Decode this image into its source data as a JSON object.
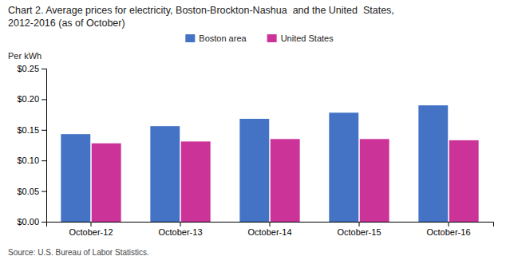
{
  "chart_data": {
    "type": "bar",
    "title": "Chart 2. Average prices for electricity, Boston-Brockton-Nashua  and the United  States,\n2012-2016 (as of October)",
    "ylabel": "Per kWh",
    "source": "Source: U.S. Bureau of Labor Statistics.",
    "categories": [
      "October-12",
      "October-13",
      "October-14",
      "October-15",
      "October-16"
    ],
    "series": [
      {
        "name": "Boston area",
        "color": "#4472C4",
        "values": [
          0.143,
          0.156,
          0.168,
          0.178,
          0.19
        ]
      },
      {
        "name": "United States",
        "color": "#CC3399",
        "values": [
          0.128,
          0.131,
          0.135,
          0.135,
          0.133
        ]
      }
    ],
    "ylim": [
      0,
      0.25
    ],
    "yticks": [
      {
        "value": 0.0,
        "label": "$0.00"
      },
      {
        "value": 0.05,
        "label": "$0.05"
      },
      {
        "value": 0.1,
        "label": "$0.10"
      },
      {
        "value": 0.15,
        "label": "$0.15"
      },
      {
        "value": 0.2,
        "label": "$0.20"
      },
      {
        "value": 0.25,
        "label": "$0.25"
      }
    ],
    "grid": false,
    "legend": "top"
  }
}
